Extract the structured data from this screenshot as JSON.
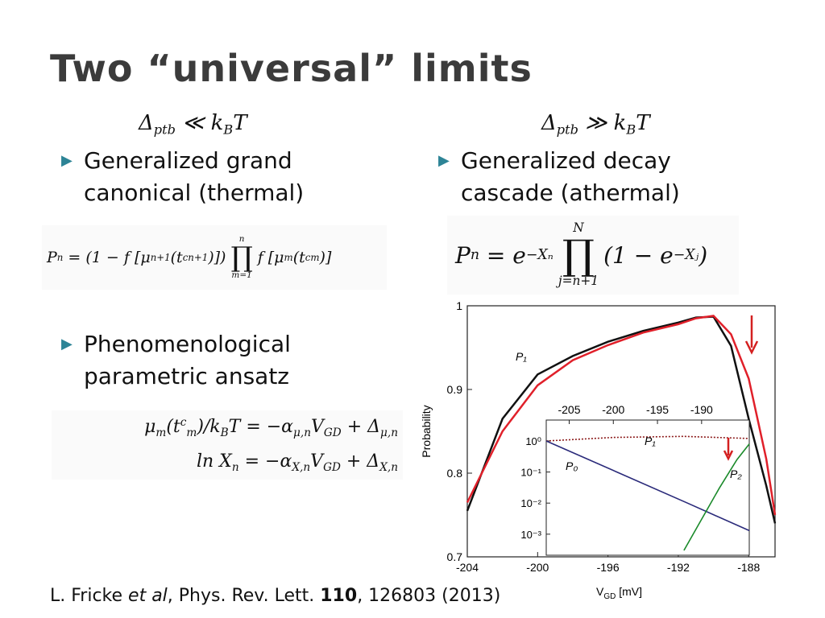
{
  "slide": {
    "title": [
      {
        "t": "Two “universal” limits"
      }
    ],
    "left": {
      "condition": [
        {
          "t": "Δ"
        },
        {
          "sub": "ptb"
        },
        {
          "t": " ≪ k"
        },
        {
          "sub": "B"
        },
        {
          "t": "T"
        }
      ],
      "bullets": [
        "Generalized grand canonical (thermal)",
        "Phenomenological parametric ansatz"
      ],
      "equation": [
        {
          "t": "P"
        },
        {
          "sub": "n"
        },
        {
          "t": " = (1 − f [μ"
        },
        {
          "sub": "n+1"
        },
        {
          "t": "(t"
        },
        {
          "sup": "c"
        },
        {
          "sub": "n+1"
        },
        {
          "t": ")])"
        },
        {
          "op": "∏",
          "over": "n",
          "under": "m=1"
        },
        {
          "t": "f [μ"
        },
        {
          "sub": "m"
        },
        {
          "t": "(t"
        },
        {
          "sup": "c"
        },
        {
          "sub": "m"
        },
        {
          "t": ")]"
        }
      ],
      "ansatz": [
        [
          {
            "t": "μ"
          },
          {
            "sub": "m"
          },
          {
            "t": "(t"
          },
          {
            "sup": "c"
          },
          {
            "sub": "m"
          },
          {
            "t": ")/k"
          },
          {
            "sub": "B"
          },
          {
            "t": "T = −α"
          },
          {
            "sub": "μ,n"
          },
          {
            "t": "V"
          },
          {
            "sub": "GD"
          },
          {
            "t": " + Δ"
          },
          {
            "sub": "μ,n"
          }
        ],
        [
          {
            "t": "ln X"
          },
          {
            "sub": "n"
          },
          {
            "t": " = −α"
          },
          {
            "sub": "X,n"
          },
          {
            "t": "V"
          },
          {
            "sub": "GD"
          },
          {
            "t": " + Δ"
          },
          {
            "sub": "X,n"
          }
        ]
      ]
    },
    "right": {
      "condition": [
        {
          "t": "Δ"
        },
        {
          "sub": "ptb"
        },
        {
          "t": " ≫ k"
        },
        {
          "sub": "B"
        },
        {
          "t": "T"
        }
      ],
      "bullet": "Generalized decay cascade (athermal)",
      "equation": [
        {
          "t": "P"
        },
        {
          "sub": "n"
        },
        {
          "t": " = e"
        },
        {
          "sup": "−Xₙ"
        },
        {
          "op": "∏",
          "over": "N",
          "under": "j=n+1"
        },
        {
          "t": "(1 − e"
        },
        {
          "sup": "−Xⱼ"
        },
        {
          "t": ")"
        }
      ]
    },
    "citation": [
      {
        "t": "L. Fricke "
      },
      {
        "i": "et al"
      },
      {
        "t": ", Phys. Rev. Lett. "
      },
      {
        "b": "110"
      },
      {
        "t": ", 126803 (2013)"
      }
    ]
  },
  "chart_data": {
    "type": "line",
    "ylabel": "Probability",
    "xlabel": [
      {
        "t": "V"
      },
      {
        "sub": "GD"
      },
      {
        "t": " [mV]"
      }
    ],
    "annotation": "P₁",
    "xlim": [
      -204,
      -186.5
    ],
    "ylim": [
      0.7,
      1
    ],
    "xticks": [
      -204,
      -200,
      -196,
      -192,
      -188
    ],
    "yticks": [
      0.7,
      0.8,
      0.9,
      1
    ],
    "x": [
      -204,
      -202,
      -200,
      -198,
      -196,
      -194,
      -192,
      -191,
      -190,
      -189,
      -188,
      -187,
      -186.5
    ],
    "series": [
      {
        "color": "#111111",
        "values": [
          0.755,
          0.865,
          0.918,
          0.94,
          0.957,
          0.97,
          0.98,
          0.986,
          0.987,
          0.952,
          0.865,
          0.785,
          0.74
        ]
      },
      {
        "color": "#e0202a",
        "values": [
          0.765,
          0.85,
          0.905,
          0.935,
          0.953,
          0.968,
          0.978,
          0.985,
          0.988,
          0.966,
          0.913,
          0.817,
          0.75
        ]
      }
    ],
    "inset": {
      "type": "line",
      "ylog": true,
      "xlim": [
        -207.6,
        -184.6
      ],
      "ylim": [
        0.00021,
        4.7
      ],
      "xticks": [
        -205,
        -200,
        -195,
        -190
      ],
      "yticks": [
        {
          "value": 1,
          "label": "10⁰"
        },
        {
          "value": 0.1,
          "label": "10⁻¹"
        },
        {
          "value": 0.01,
          "label": "10⁻²"
        },
        {
          "value": 0.001,
          "label": "10⁻³"
        }
      ],
      "series": [
        {
          "name": "P₁",
          "color": "#8b1a1a",
          "x": [
            -207.6,
            -200,
            -192,
            -184.6
          ],
          "values": [
            1,
            1.3,
            1.4,
            1.2
          ]
        },
        {
          "name": "P₀",
          "color": "#2a2a7a",
          "x": [
            -207.6,
            -199.6,
            -191.6,
            -184.6
          ],
          "values": [
            1,
            0.1,
            0.01,
            0.0013
          ]
        },
        {
          "name": "P₂",
          "color": "#1a8a2a",
          "x": [
            -192,
            -190,
            -188,
            -186,
            -184.6
          ],
          "values": [
            0.0003,
            0.003,
            0.03,
            0.25,
            0.8
          ]
        }
      ]
    }
  }
}
